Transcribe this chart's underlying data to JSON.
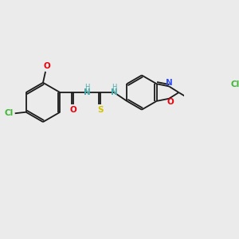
{
  "bg_color": "#ebebeb",
  "bond_color": "#1a1a1a",
  "figsize": [
    3.0,
    3.0
  ],
  "dpi": 100,
  "colors": {
    "Cl": "#3cb832",
    "O": "#e8000d",
    "N": "#304ff7",
    "S": "#d4c200",
    "NH": "#4daaaa",
    "C": "#1a1a1a"
  }
}
